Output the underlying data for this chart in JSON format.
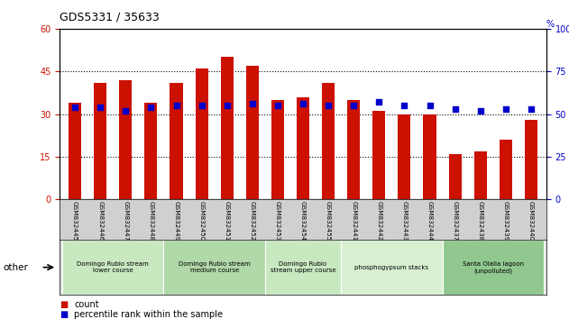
{
  "title": "GDS5331 / 35633",
  "samples": [
    "GSM832445",
    "GSM832446",
    "GSM832447",
    "GSM832448",
    "GSM832449",
    "GSM832450",
    "GSM832451",
    "GSM832452",
    "GSM832453",
    "GSM832454",
    "GSM832455",
    "GSM832441",
    "GSM832442",
    "GSM832443",
    "GSM832444",
    "GSM832437",
    "GSM832438",
    "GSM832439",
    "GSM832440"
  ],
  "counts": [
    34,
    41,
    42,
    34,
    41,
    46,
    50,
    47,
    35,
    36,
    41,
    35,
    31,
    30,
    30,
    16,
    17,
    21,
    28
  ],
  "percentiles": [
    54,
    54,
    52,
    54,
    55,
    55,
    55,
    56,
    55,
    56,
    55,
    55,
    57,
    55,
    55,
    53,
    52,
    53,
    53
  ],
  "bar_color": "#cc1100",
  "dot_color": "#0000cc",
  "left_ylim": [
    0,
    60
  ],
  "right_ylim": [
    0,
    100
  ],
  "left_yticks": [
    0,
    15,
    30,
    45,
    60
  ],
  "right_yticks": [
    0,
    25,
    50,
    75,
    100
  ],
  "groups": [
    {
      "label": "Domingo Rubio stream\nlower course",
      "start": 0,
      "end": 4,
      "color": "#c8e8c0"
    },
    {
      "label": "Domingo Rubio stream\nmedium course",
      "start": 4,
      "end": 8,
      "color": "#b0d8a8"
    },
    {
      "label": "Domingo Rubio\nstream upper course",
      "start": 8,
      "end": 11,
      "color": "#c8e8c0"
    },
    {
      "label": "phosphogypsum stacks",
      "start": 11,
      "end": 15,
      "color": "#d8f0d0"
    },
    {
      "label": "Santa Olalla lagoon\n(unpolluted)",
      "start": 15,
      "end": 19,
      "color": "#90c890"
    }
  ],
  "other_label": "other",
  "legend_count_label": "count",
  "legend_percentile_label": "percentile rank within the sample",
  "axis_label_color_left": "#cc1100",
  "axis_label_color_right": "#0000cc",
  "plot_bg_color": "#ffffff",
  "tick_area_color": "#d0d0d0"
}
